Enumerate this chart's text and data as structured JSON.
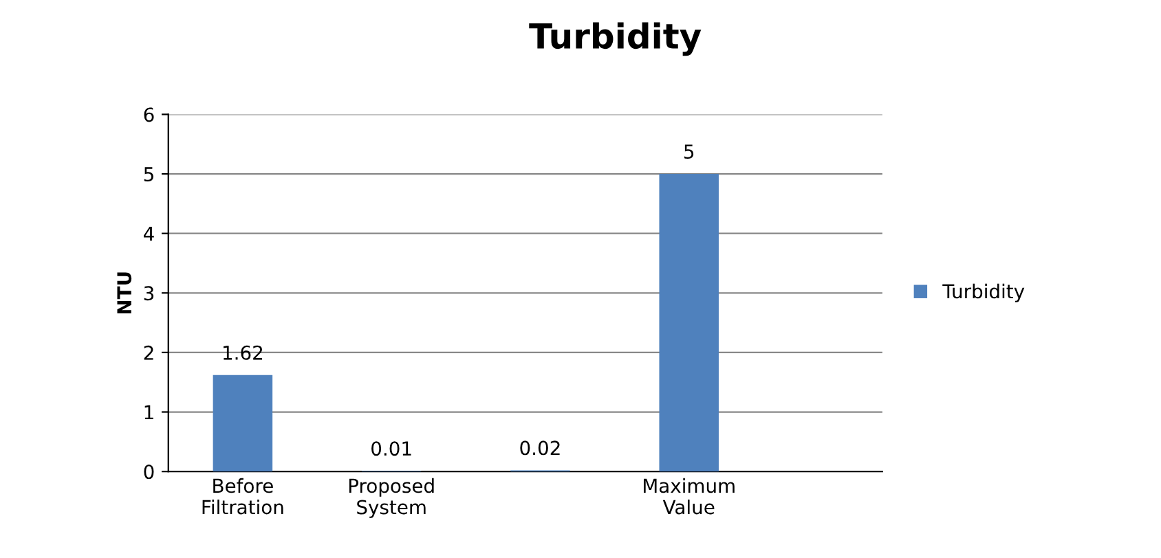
{
  "chart_data": {
    "type": "bar",
    "title": "Turbidity",
    "ylabel": "NTU",
    "categories": [
      "Before\nFiltration",
      "Proposed\nSystem",
      null,
      "Maximum\nValue"
    ],
    "series": [
      {
        "name": "Turbidity",
        "color": "#4f81bd",
        "values": [
          1.62,
          0.01,
          0.02,
          5
        ]
      }
    ],
    "ylim": [
      0,
      6
    ],
    "yticks": [
      0,
      1,
      2,
      3,
      4,
      5,
      6
    ],
    "grid": "y",
    "legend": "right",
    "data_labels": true
  }
}
